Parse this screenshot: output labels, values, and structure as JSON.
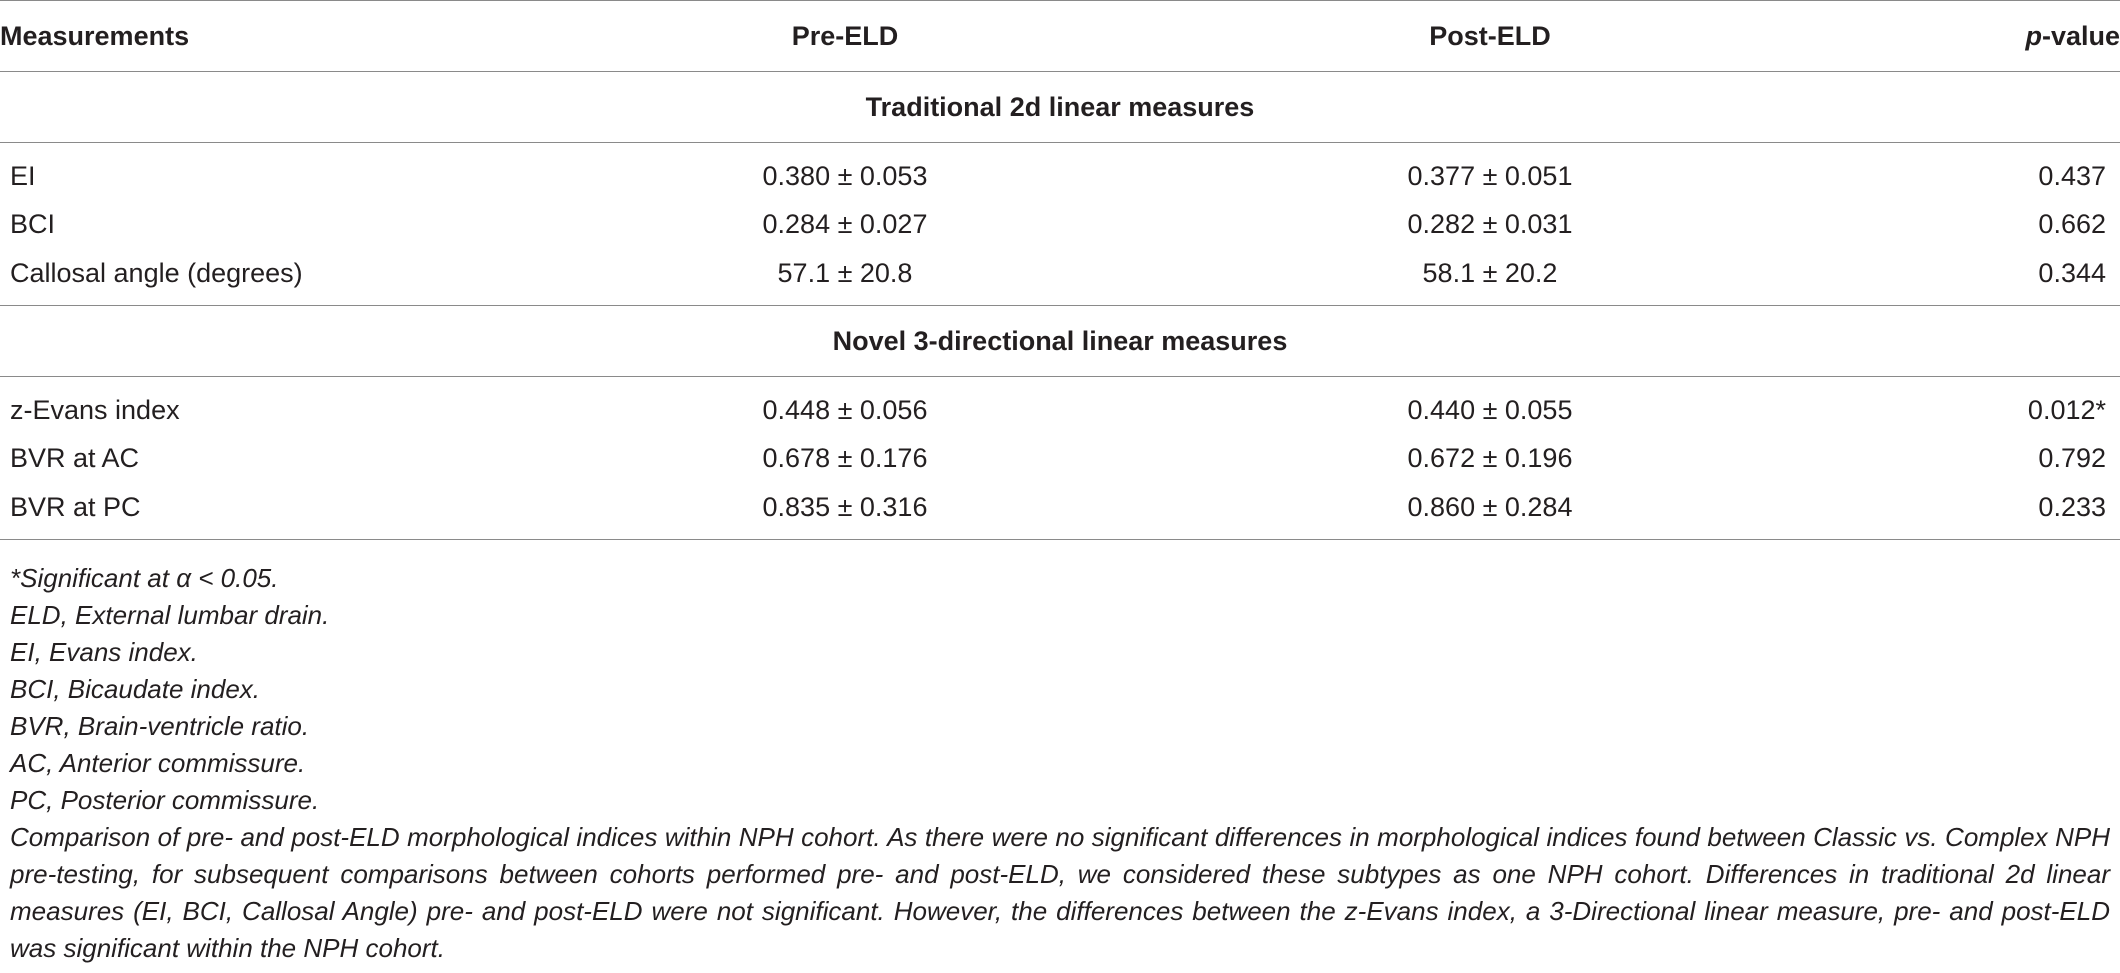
{
  "table": {
    "headers": {
      "measurements": "Measurements",
      "pre": "Pre-ELD",
      "post": "Post-ELD",
      "p_italic": "p",
      "p_rest": "-value"
    },
    "sections": [
      {
        "title": "Traditional 2d linear measures",
        "rows": [
          {
            "name": "EI",
            "pre": "0.380 ± 0.053",
            "post": "0.377 ± 0.051",
            "p": "0.437"
          },
          {
            "name": "BCI",
            "pre": "0.284 ± 0.027",
            "post": "0.282 ± 0.031",
            "p": "0.662"
          },
          {
            "name": "Callosal angle (degrees)",
            "pre": "57.1 ± 20.8",
            "post": "58.1 ± 20.2",
            "p": "0.344"
          }
        ]
      },
      {
        "title": "Novel 3-directional linear measures",
        "rows": [
          {
            "name": "z-Evans index",
            "pre": "0.448 ± 0.056",
            "post": "0.440 ± 0.055",
            "p": "0.012*"
          },
          {
            "name": "BVR at AC",
            "pre": "0.678 ± 0.176",
            "post": "0.672 ± 0.196",
            "p": "0.792"
          },
          {
            "name": "BVR at PC",
            "pre": "0.835 ± 0.316",
            "post": "0.860 ± 0.284",
            "p": "0.233"
          }
        ]
      }
    ]
  },
  "footnotes": [
    "*Significant at α < 0.05.",
    "ELD, External lumbar drain.",
    "EI, Evans index.",
    "BCI, Bicaudate index.",
    "BVR, Brain-ventricle ratio.",
    "AC, Anterior commissure.",
    "PC, Posterior commissure."
  ],
  "caption": "Comparison of pre- and post-ELD morphological indices within NPH cohort. As there were no significant differences in morphological indices found between Classic vs. Complex NPH pre-testing, for subsequent comparisons between cohorts performed pre- and post-ELD, we considered these subtypes as one NPH cohort. Differences in traditional 2d linear measures (EI, BCI, Callosal Angle) pre- and post-ELD were not significant. However, the differences between the z-Evans index, a 3-Directional linear measure, pre- and post-ELD was significant within the NPH cohort."
}
